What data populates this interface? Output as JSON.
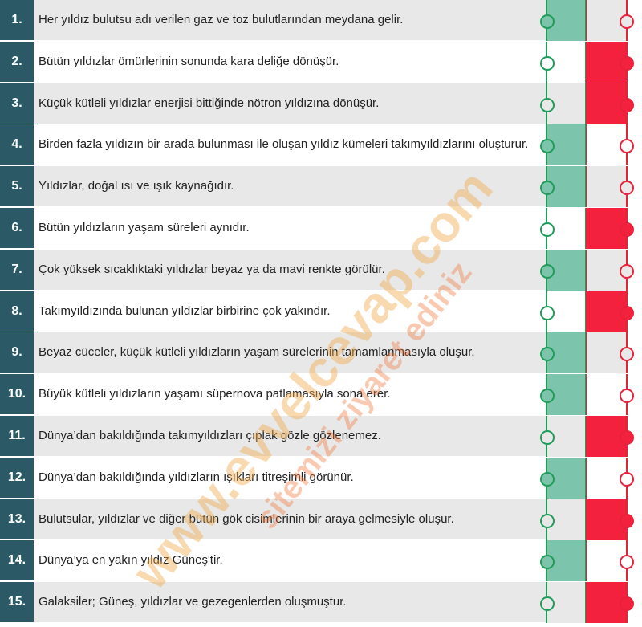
{
  "colors": {
    "number_bg": "#2b5a66",
    "true_fill": "#7dc4ad",
    "false_fill": "#f3213d",
    "true_border": "#1e9c5a",
    "false_border": "#e8213a"
  },
  "items": [
    {
      "num": "1.",
      "text": "Her yıldız bulutsu adı verilen gaz ve toz bulutlarından meydana gelir.",
      "answer": "true"
    },
    {
      "num": "2.",
      "text": "Bütün yıldızlar ömürlerinin sonunda kara deliğe dönüşür.",
      "answer": "false"
    },
    {
      "num": "3.",
      "text": "Küçük kütleli yıldızlar enerjisi bittiğinde nötron yıldızına dönüşür.",
      "answer": "false"
    },
    {
      "num": "4.",
      "text": "Birden fazla yıldızın bir arada bulunması ile oluşan yıldız kümeleri takımyıldızlarını oluşturur.",
      "answer": "true"
    },
    {
      "num": "5.",
      "text": "Yıldızlar, doğal ısı ve ışık kaynağıdır.",
      "answer": "true"
    },
    {
      "num": "6.",
      "text": "Bütün yıldızların yaşam süreleri aynıdır.",
      "answer": "false"
    },
    {
      "num": "7.",
      "text": "Çok yüksek sıcaklıktaki yıldızlar beyaz ya da mavi renkte görülür.",
      "answer": "true"
    },
    {
      "num": "8.",
      "text": "Takımyıldızında bulunan yıldızlar birbirine çok yakındır.",
      "answer": "false"
    },
    {
      "num": "9.",
      "text": "Beyaz cüceler, küçük kütleli yıldızların yaşam sürelerinin tamamlanmasıyla oluşur.",
      "answer": "true"
    },
    {
      "num": "10.",
      "text": "Büyük kütleli yıldızların yaşamı süpernova patlamasıyla sona erer.",
      "answer": "true"
    },
    {
      "num": "11.",
      "text": "Dünya’dan bakıldığında takımyıldızları çıplak gözle gözlenemez.",
      "answer": "false"
    },
    {
      "num": "12.",
      "text": "Dünya’dan bakıldığında yıldızların ışıkları titreşimli görünür.",
      "answer": "true"
    },
    {
      "num": "13.",
      "text": "Bulutsular, yıldızlar ve diğer bütün gök cisimlerinin bir araya gelmesiyle oluşur.",
      "answer": "false"
    },
    {
      "num": "14.",
      "text": "Dünya’ya en yakın yıldız Güneş'tir.",
      "answer": "true"
    },
    {
      "num": "15.",
      "text": "Galaksiler; Güneş, yıldızlar ve gezegenlerden oluşmuştur.",
      "answer": "false"
    }
  ],
  "watermark": {
    "line1": "www.evvelcevap.com",
    "line2": "sitemizi ziyaret ediniz"
  }
}
